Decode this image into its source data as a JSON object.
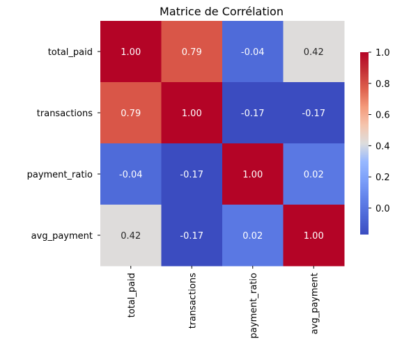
{
  "chart_data": {
    "type": "heatmap",
    "title": "Matrice de Corrélation",
    "colormap": "coolwarm",
    "row_labels": [
      "total_paid",
      "transactions",
      "payment_ratio",
      "avg_payment"
    ],
    "col_labels": [
      "total_paid",
      "transactions",
      "payment_ratio",
      "avg_payment"
    ],
    "values": [
      [
        1.0,
        0.79,
        -0.04,
        0.42
      ],
      [
        0.79,
        1.0,
        -0.17,
        -0.17
      ],
      [
        -0.04,
        -0.17,
        1.0,
        0.02
      ],
      [
        0.42,
        -0.17,
        0.02,
        1.0
      ]
    ],
    "value_format": "2 decimals",
    "colorbar": {
      "vmin": -0.17,
      "vmax": 1.0,
      "ticks": [
        0.0,
        0.2,
        0.4,
        0.6,
        0.8,
        1.0
      ],
      "tick_labels": [
        "0.0",
        "0.2",
        "0.4",
        "0.6",
        "0.8",
        "1.0"
      ]
    },
    "colors": {
      "low": "#3b4cc0",
      "mid": "#dddddd",
      "high": "#b40426",
      "dark_text": "#262626",
      "light_text": "#ffffff"
    }
  }
}
